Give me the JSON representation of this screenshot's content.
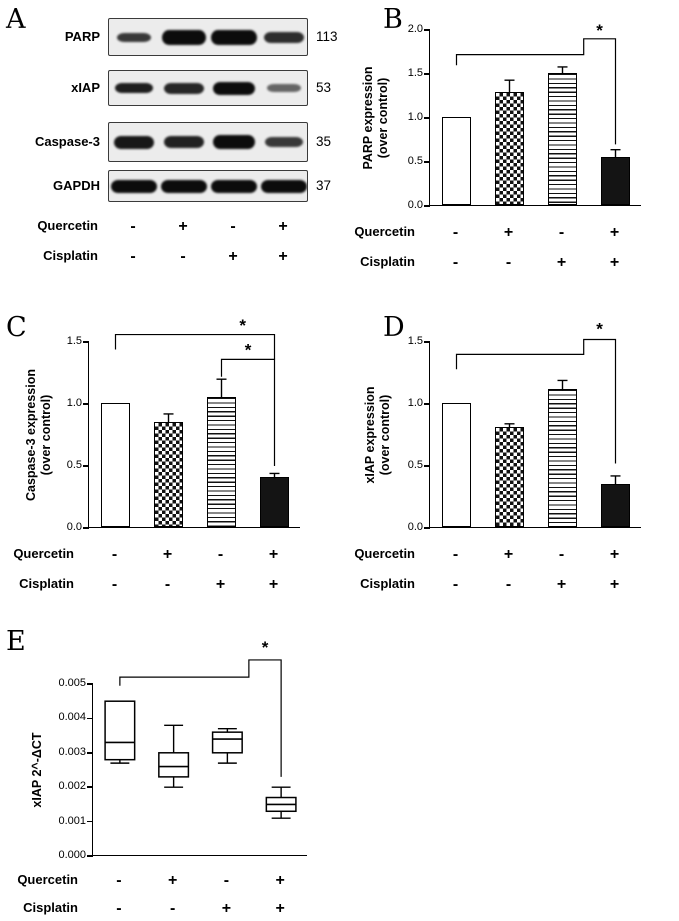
{
  "panels": {
    "A": {
      "letter": "A",
      "blots": [
        {
          "name": "PARP",
          "mw": "113",
          "bands": [
            0.8,
            1,
            1,
            0.85
          ],
          "band_widths": [
            34,
            44,
            46,
            40
          ],
          "band_heights": [
            9,
            15,
            15,
            11
          ]
        },
        {
          "name": "xIAP",
          "mw": "53",
          "bands": [
            0.92,
            0.88,
            1,
            0.6
          ],
          "band_widths": [
            38,
            40,
            42,
            34
          ],
          "band_heights": [
            10,
            11,
            13,
            8
          ]
        },
        {
          "name": "Caspase-3",
          "mw": "35",
          "bands": [
            0.95,
            0.9,
            1,
            0.8
          ],
          "band_widths": [
            40,
            40,
            42,
            38
          ],
          "band_heights": [
            13,
            12,
            14,
            10
          ]
        },
        {
          "name": "GAPDH",
          "mw": "37",
          "bands": [
            1,
            1,
            1,
            1
          ],
          "band_widths": [
            46,
            46,
            46,
            46
          ],
          "band_heights": [
            13,
            13,
            13,
            13
          ]
        }
      ],
      "treatments": [
        {
          "name": "Quercetin",
          "values": [
            "-",
            "+",
            "-",
            "+"
          ]
        },
        {
          "name": "Cisplatin",
          "values": [
            "-",
            "-",
            "+",
            "+"
          ]
        }
      ]
    },
    "B": {
      "letter": "B"
    },
    "C": {
      "letter": "C"
    },
    "D": {
      "letter": "D"
    },
    "E": {
      "letter": "E"
    }
  },
  "chart_data": [
    {
      "panel": "B",
      "type": "bar",
      "ylabel_lines": [
        "PARP expression",
        "(over control)"
      ],
      "ylim": [
        0,
        2.0
      ],
      "yticks": [
        "0.0",
        "0.5",
        "1.0",
        "1.5",
        "2.0"
      ],
      "categories": [
        "control",
        "quercetin",
        "cisplatin",
        "quercetin-cisplatin"
      ],
      "values": [
        1.0,
        1.28,
        1.5,
        0.55
      ],
      "errors": [
        0,
        0.15,
        0.08,
        0.09
      ],
      "bar_styles": [
        "plain",
        "checker",
        "hlines",
        "solid"
      ],
      "brackets": [
        {
          "points": [
            [
              0,
              1.6
            ],
            [
              0,
              1.72
            ],
            [
              2.4,
              1.72
            ],
            [
              2.4,
              1.9
            ],
            [
              3,
              1.9
            ],
            [
              3,
              0.7
            ]
          ],
          "star": [
            2.7,
            1.93
          ],
          "label": "*"
        }
      ],
      "treatments": [
        {
          "name": "Quercetin",
          "values": [
            "-",
            "+",
            "-",
            "+"
          ]
        },
        {
          "name": "Cisplatin",
          "values": [
            "-",
            "-",
            "+",
            "+"
          ]
        }
      ]
    },
    {
      "panel": "C",
      "type": "bar",
      "ylabel_lines": [
        "Caspase-3 expression",
        "(over control)"
      ],
      "ylim": [
        0,
        1.5
      ],
      "yticks": [
        "0.0",
        "0.5",
        "1.0",
        "1.5"
      ],
      "categories": [
        "control",
        "quercetin",
        "cisplatin",
        "quercetin-cisplatin"
      ],
      "values": [
        1.0,
        0.85,
        1.05,
        0.4
      ],
      "errors": [
        0,
        0.07,
        0.15,
        0.04
      ],
      "bar_styles": [
        "plain",
        "checker",
        "hlines",
        "solid"
      ],
      "brackets": [
        {
          "points": [
            [
              0,
              1.44
            ],
            [
              0,
              1.56
            ],
            [
              3,
              1.56
            ],
            [
              3,
              1.36
            ]
          ],
          "star": [
            2.4,
            1.59
          ],
          "label": "*"
        },
        {
          "points": [
            [
              2,
              1.22
            ],
            [
              2,
              1.36
            ],
            [
              3,
              1.36
            ],
            [
              3,
              0.5
            ]
          ],
          "star": [
            2.5,
            1.39
          ],
          "label": "*"
        }
      ],
      "treatments": [
        {
          "name": "Quercetin",
          "values": [
            "-",
            "+",
            "-",
            "+"
          ]
        },
        {
          "name": "Cisplatin",
          "values": [
            "-",
            "-",
            "+",
            "+"
          ]
        }
      ]
    },
    {
      "panel": "D",
      "type": "bar",
      "ylabel_lines": [
        "xIAP expression",
        "(over control)"
      ],
      "ylim": [
        0,
        1.5
      ],
      "yticks": [
        "0.0",
        "0.5",
        "1.0",
        "1.5"
      ],
      "categories": [
        "control",
        "quercetin",
        "cisplatin",
        "quercetin-cisplatin"
      ],
      "values": [
        1.0,
        0.81,
        1.11,
        0.35
      ],
      "errors": [
        0,
        0.03,
        0.08,
        0.07
      ],
      "bar_styles": [
        "plain",
        "checker",
        "hlines",
        "solid"
      ],
      "brackets": [
        {
          "points": [
            [
              0,
              1.28
            ],
            [
              0,
              1.4
            ],
            [
              2.4,
              1.4
            ],
            [
              2.4,
              1.52
            ],
            [
              3,
              1.52
            ],
            [
              3,
              0.52
            ]
          ],
          "star": [
            2.7,
            1.56
          ],
          "label": "*"
        }
      ],
      "treatments": [
        {
          "name": "Quercetin",
          "values": [
            "-",
            "+",
            "-",
            "+"
          ]
        },
        {
          "name": "Cisplatin",
          "values": [
            "-",
            "-",
            "+",
            "+"
          ]
        }
      ]
    },
    {
      "panel": "E",
      "type": "box",
      "ylabel_lines": [
        "xIAP 2^-ΔCT"
      ],
      "ylim": [
        0,
        0.005
      ],
      "yticks": [
        "0.000",
        "0.001",
        "0.002",
        "0.003",
        "0.004",
        "0.005"
      ],
      "categories": [
        "control",
        "quercetin",
        "cisplatin",
        "quercetin-cisplatin"
      ],
      "boxes": [
        {
          "min": 0.0027,
          "q1": 0.0028,
          "median": 0.0033,
          "q3": 0.0045,
          "max": 0.0045
        },
        {
          "min": 0.002,
          "q1": 0.0023,
          "median": 0.0026,
          "q3": 0.003,
          "max": 0.0038
        },
        {
          "min": 0.0027,
          "q1": 0.003,
          "median": 0.0034,
          "q3": 0.0036,
          "max": 0.0037
        },
        {
          "min": 0.0011,
          "q1": 0.0013,
          "median": 0.0015,
          "q3": 0.0017,
          "max": 0.002
        }
      ],
      "brackets": [
        {
          "points": [
            [
              0,
              0.00495
            ],
            [
              0,
              0.0052
            ],
            [
              2.4,
              0.0052
            ],
            [
              2.4,
              0.0057
            ],
            [
              3,
              0.0057
            ],
            [
              3,
              0.0023
            ]
          ],
          "star": [
            2.7,
            0.0059
          ],
          "label": "*"
        }
      ],
      "treatments": [
        {
          "name": "Quercetin",
          "values": [
            "-",
            "+",
            "-",
            "+"
          ]
        },
        {
          "name": "Cisplatin",
          "values": [
            "-",
            "-",
            "+",
            "+"
          ]
        }
      ]
    }
  ]
}
